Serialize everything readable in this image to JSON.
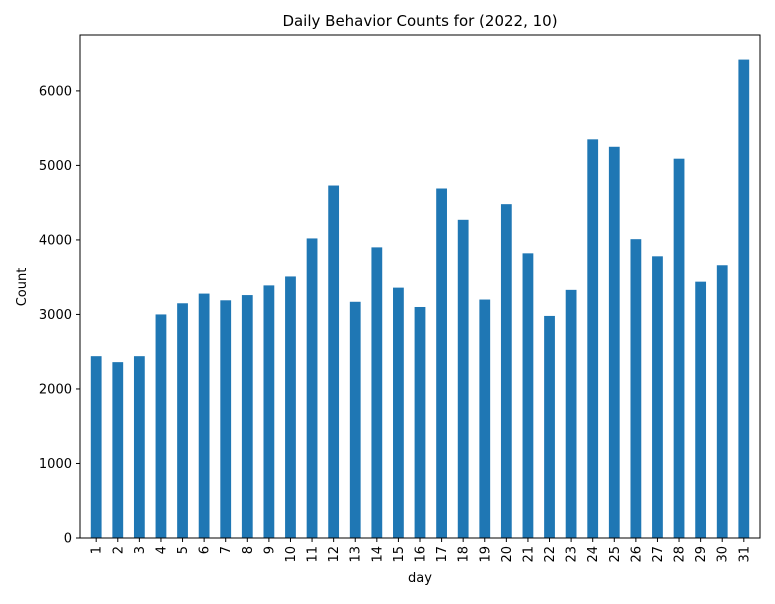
{
  "chart_data": {
    "type": "bar",
    "title": "Daily Behavior Counts for (2022, 10)",
    "xlabel": "day",
    "ylabel": "Count",
    "categories": [
      "1",
      "2",
      "3",
      "4",
      "5",
      "6",
      "7",
      "8",
      "9",
      "10",
      "11",
      "12",
      "13",
      "14",
      "15",
      "16",
      "17",
      "18",
      "19",
      "20",
      "21",
      "22",
      "23",
      "24",
      "25",
      "26",
      "27",
      "28",
      "29",
      "30",
      "31"
    ],
    "values": [
      2440,
      2360,
      2440,
      3000,
      3150,
      3280,
      3190,
      3260,
      3390,
      3510,
      4020,
      4730,
      3170,
      3900,
      3360,
      3100,
      4690,
      4270,
      3200,
      4480,
      3820,
      2980,
      3330,
      5350,
      5250,
      4010,
      3780,
      5090,
      3440,
      3660,
      6420
    ],
    "ylim": [
      0,
      6750
    ],
    "yticks": [
      0,
      1000,
      2000,
      3000,
      4000,
      5000,
      6000
    ],
    "bar_color": "#1f77b4",
    "grid": false,
    "legend": false
  }
}
